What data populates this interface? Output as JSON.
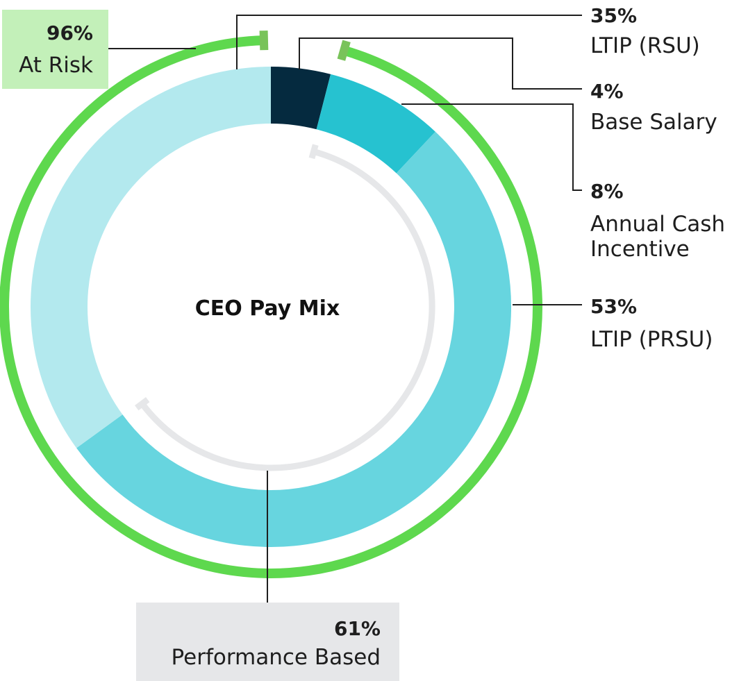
{
  "chart_data": {
    "type": "pie",
    "title": "CEO Pay Mix",
    "slices": [
      {
        "label": "Base Salary",
        "value": 4,
        "value_label": "4%",
        "color": "#052a3f"
      },
      {
        "label": "Annual Cash Incentive",
        "value": 8,
        "value_label": "8%",
        "color": "#26c2d0"
      },
      {
        "label": "LTIP (PRSU)",
        "value": 53,
        "value_label": "53%",
        "color": "#67d5df"
      },
      {
        "label": "LTIP (RSU)",
        "value": 35,
        "value_label": "35%",
        "color": "#b3e9ee"
      }
    ],
    "annual_cash_label_lines": [
      "Annual Cash",
      "Incentive"
    ],
    "groupings": [
      {
        "label": "At Risk",
        "value": 96,
        "value_label": "96%",
        "color": "#5ed84e",
        "box_color": "#c3f0b9",
        "marker_color": "#79c35a"
      },
      {
        "label": "Performance Based",
        "value": 61,
        "value_label": "61%",
        "color": "#e6e7e9",
        "box_color": "#e6e7e9"
      }
    ]
  }
}
